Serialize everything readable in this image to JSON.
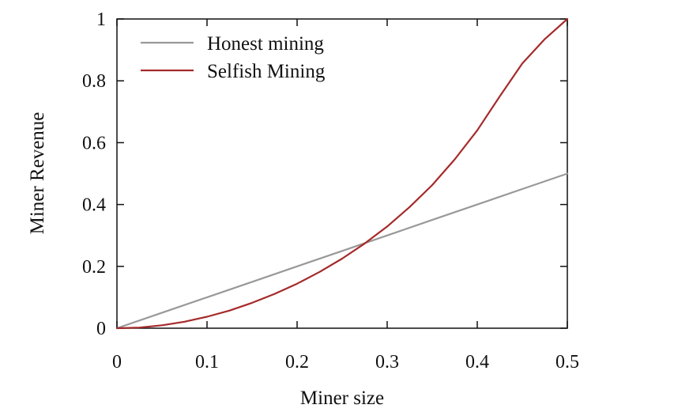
{
  "chart_data": {
    "type": "line",
    "title": "",
    "xlabel": "Miner size",
    "ylabel": "Miner Revenue",
    "xlim": [
      0,
      0.5
    ],
    "ylim": [
      0,
      1
    ],
    "xticks": [
      0,
      0.1,
      0.2,
      0.3,
      0.4,
      0.5
    ],
    "yticks": [
      0,
      0.2,
      0.4,
      0.6,
      0.8,
      1
    ],
    "xtick_labels": [
      "0",
      "0.1",
      "0.2",
      "0.3",
      "0.4",
      "0.5"
    ],
    "ytick_labels": [
      "0",
      "0.2",
      "0.4",
      "0.6",
      "0.8",
      "1"
    ],
    "grid": false,
    "legend_position": "top-left",
    "series": [
      {
        "name": "Honest mining",
        "color": "#999999",
        "x": [
          0,
          0.05,
          0.1,
          0.15,
          0.2,
          0.25,
          0.3,
          0.35,
          0.4,
          0.45,
          0.5
        ],
        "y": [
          0,
          0.05,
          0.1,
          0.15,
          0.2,
          0.25,
          0.3,
          0.35,
          0.4,
          0.45,
          0.5
        ]
      },
      {
        "name": "Selfish Mining",
        "color": "#a52a2a",
        "x": [
          0,
          0.025,
          0.05,
          0.075,
          0.1,
          0.125,
          0.15,
          0.175,
          0.2,
          0.225,
          0.25,
          0.275,
          0.3,
          0.325,
          0.35,
          0.375,
          0.4,
          0.425,
          0.45,
          0.475,
          0.5
        ],
        "y": [
          0,
          0.002,
          0.0095,
          0.021,
          0.037,
          0.057,
          0.082,
          0.111,
          0.144,
          0.182,
          0.225,
          0.274,
          0.329,
          0.392,
          0.463,
          0.546,
          0.64,
          0.75,
          0.856,
          0.935,
          1.0
        ]
      }
    ]
  }
}
